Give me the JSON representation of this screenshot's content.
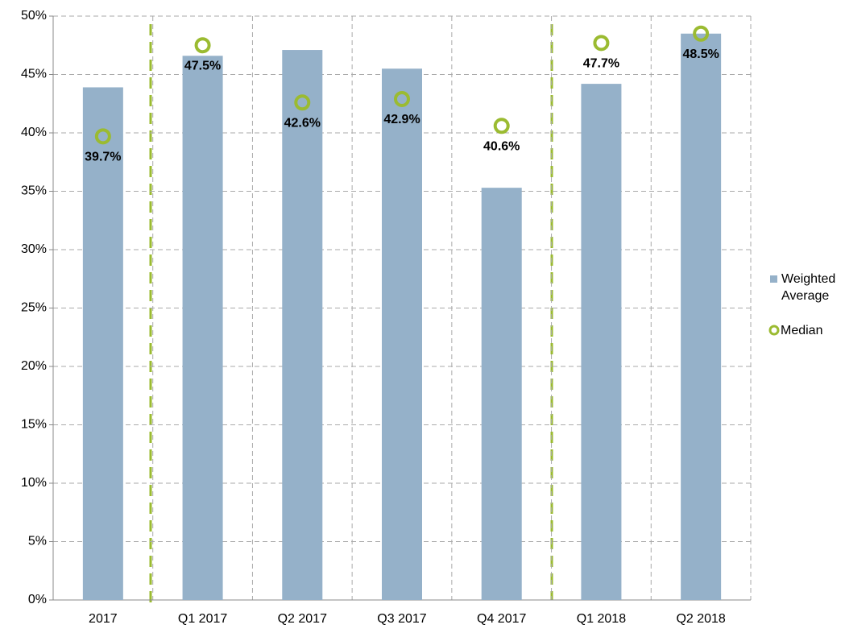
{
  "chart_data": {
    "type": "bar",
    "categories": [
      "2017",
      "Q1 2017",
      "Q2 2017",
      "Q3 2017",
      "Q4 2017",
      "Q1 2018",
      "Q2 2018"
    ],
    "series": [
      {
        "name": "Weighted Average",
        "color": "#95b1c9",
        "values": [
          43.9,
          46.6,
          47.1,
          45.5,
          35.3,
          44.2,
          48.5
        ]
      },
      {
        "name": "Median",
        "color": "#9bbb31",
        "values": [
          39.7,
          47.5,
          42.6,
          42.9,
          40.6,
          47.7,
          48.5
        ],
        "value_labels": [
          "39.7%",
          "47.5%",
          "42.6%",
          "42.9%",
          "40.6%",
          "47.7%",
          "48.5%"
        ]
      }
    ],
    "ylim": [
      0,
      50
    ],
    "yticks": [
      {
        "value": 0,
        "label": "0%"
      },
      {
        "value": 5,
        "label": "5%"
      },
      {
        "value": 10,
        "label": "10%"
      },
      {
        "value": 15,
        "label": "15%"
      },
      {
        "value": 20,
        "label": "20%"
      },
      {
        "value": 25,
        "label": "25%"
      },
      {
        "value": 30,
        "label": "30%"
      },
      {
        "value": 35,
        "label": "35%"
      },
      {
        "value": 40,
        "label": "40%"
      },
      {
        "value": 45,
        "label": "45%"
      },
      {
        "value": 50,
        "label": "50%"
      }
    ],
    "grid": true,
    "legend": "right"
  }
}
